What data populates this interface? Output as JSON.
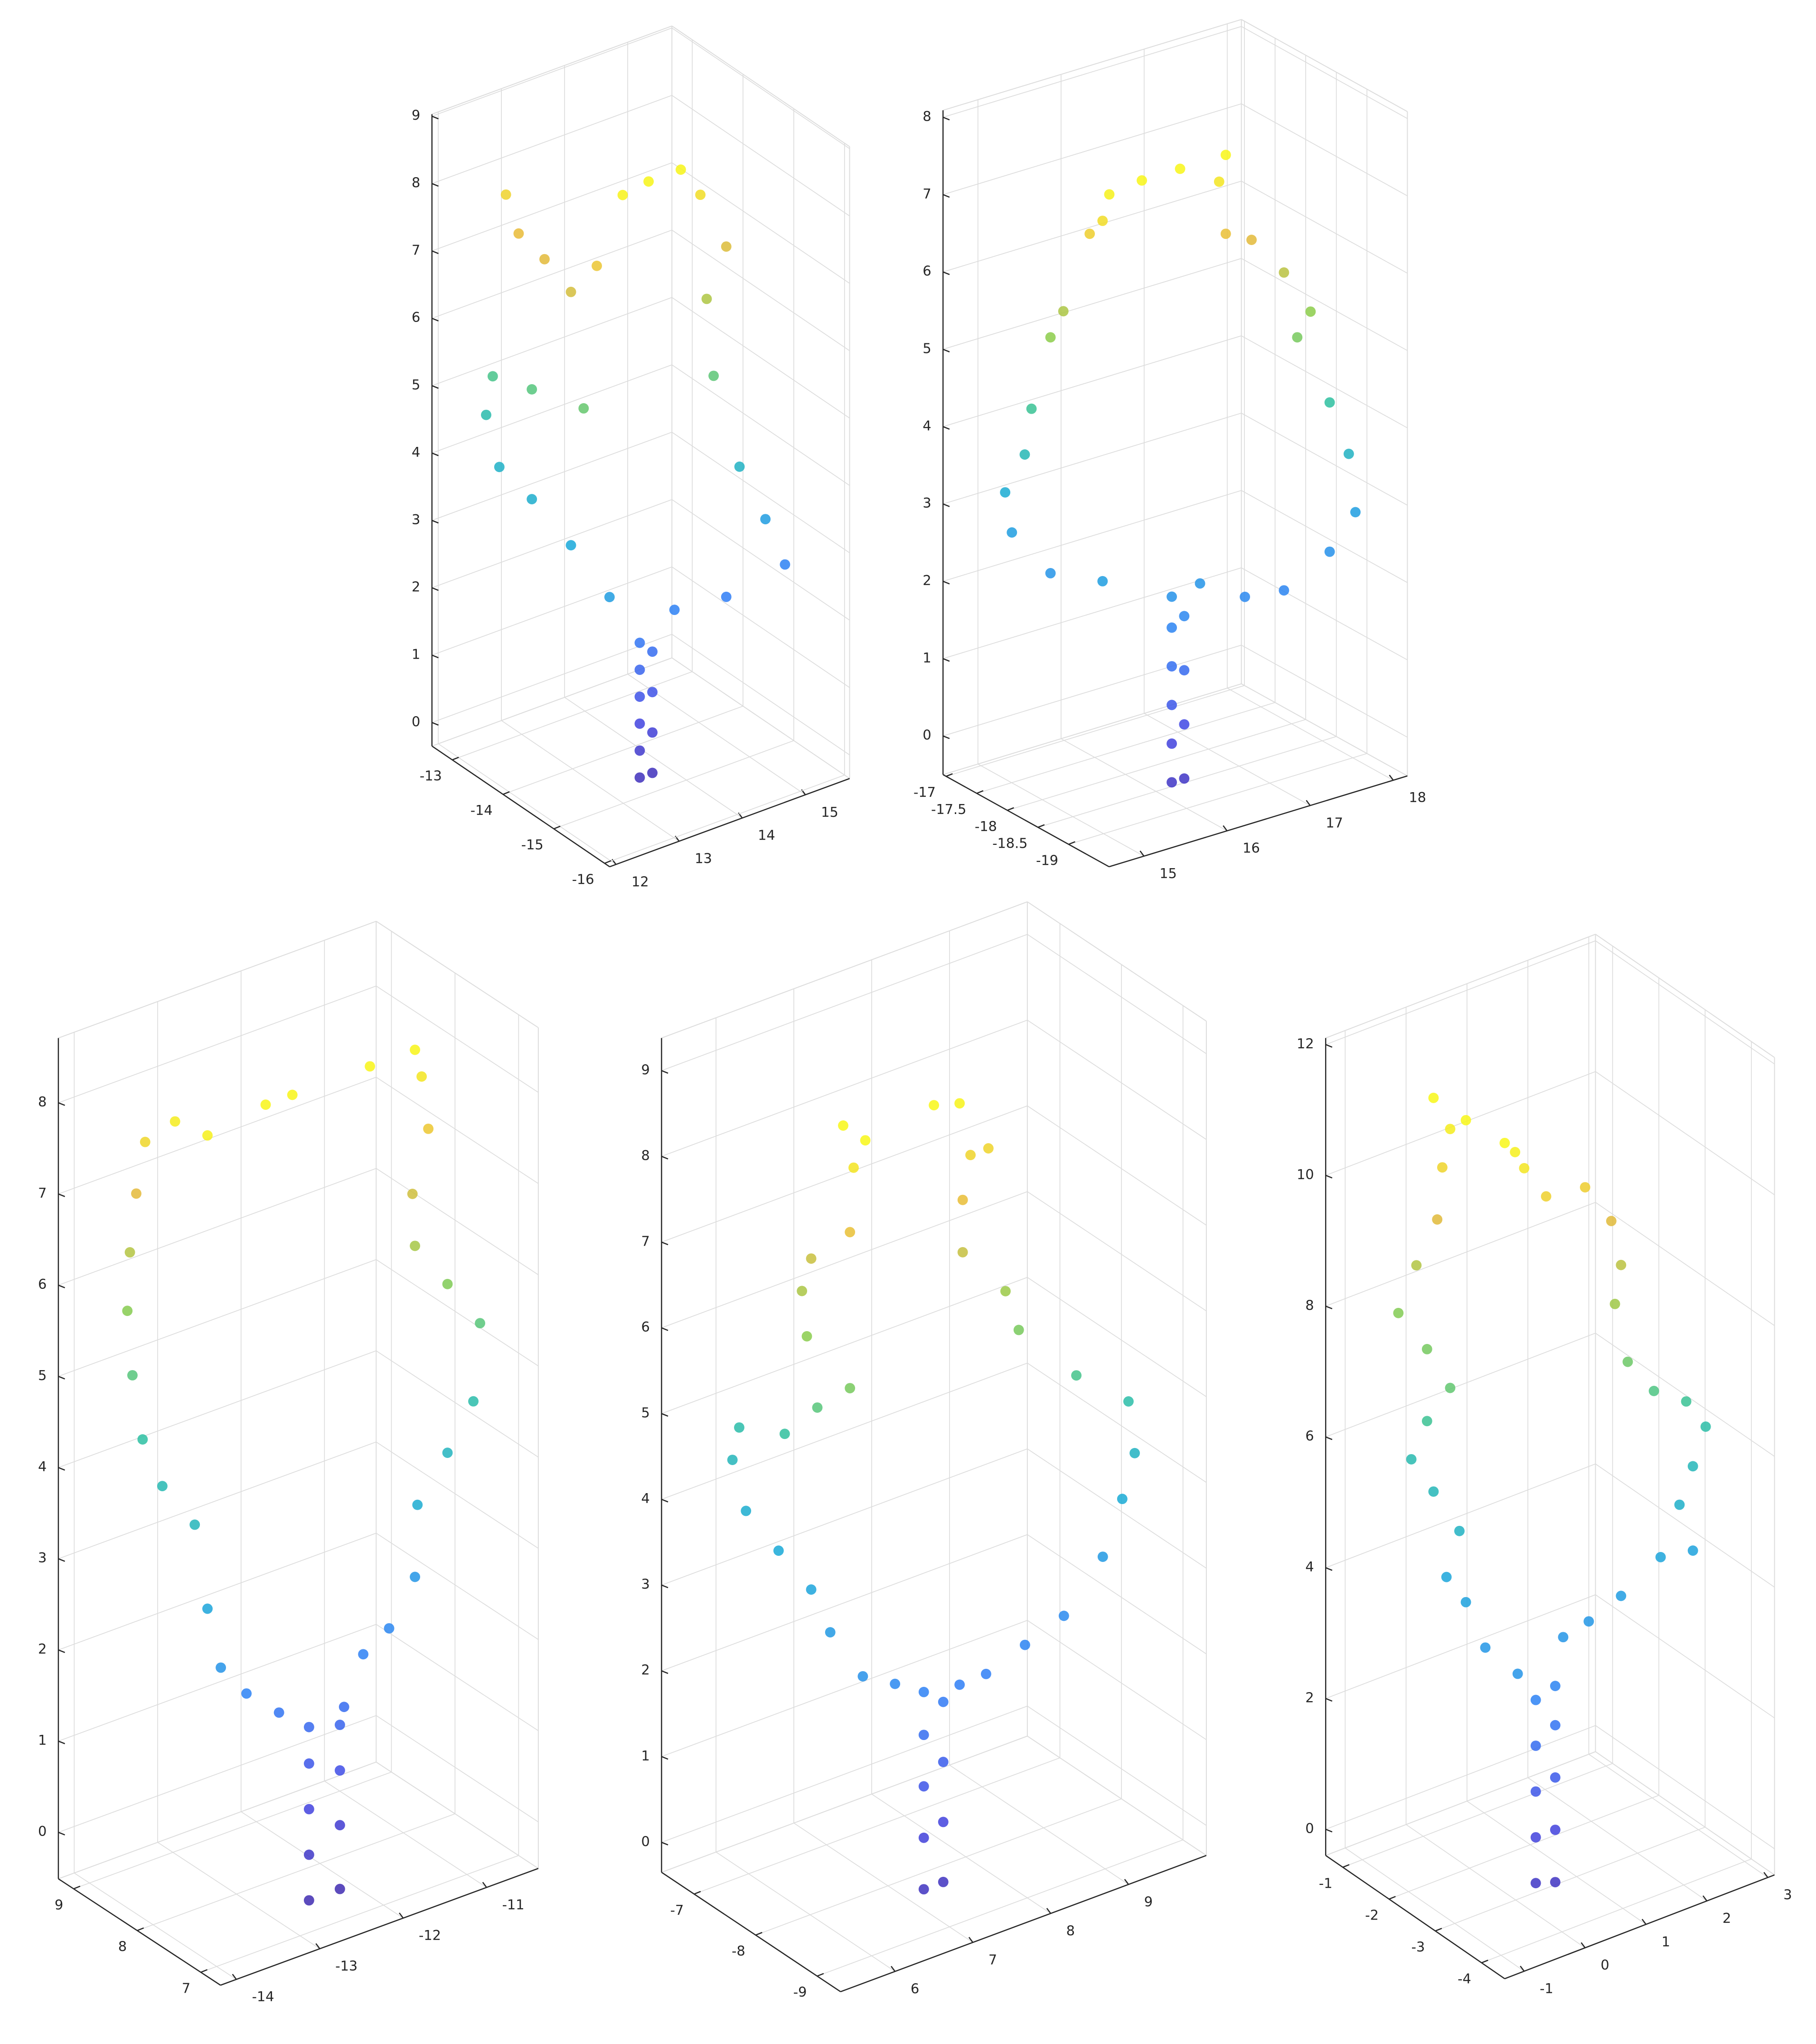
{
  "chart_data": [
    {
      "type": "scatter3d",
      "grid": true,
      "colormap": [
        "#3e26a8",
        "#4245e3",
        "#2f7ff6",
        "#19a9d8",
        "#2ec09f",
        "#8ccc4a",
        "#e8b938",
        "#f9fb15"
      ],
      "xlim": [
        11.9,
        15.7
      ],
      "ylim": [
        -16.1,
        -12.6
      ],
      "zlim": [
        -0.35,
        9.03
      ],
      "xticks": [
        12,
        13,
        14,
        15
      ],
      "yticks": [
        -16,
        -15,
        -14,
        -13
      ],
      "zticks": [
        0,
        1,
        2,
        3,
        4,
        5,
        6,
        7,
        8,
        9
      ],
      "x": [
        13.1,
        13.1,
        13.1,
        13.1,
        13.1,
        13.1,
        13.3,
        13.3,
        13.3,
        13.3,
        12.3,
        12.3,
        12.3,
        12.3,
        12.3,
        12.3,
        12.3,
        12.3,
        12.3,
        12.3,
        12.3,
        12.3,
        12.42,
        12.83,
        13.24,
        13.75,
        14.06,
        14.47,
        14.16,
        14.27,
        14.68,
        15.09,
        15.4,
        14.47,
        13.65
      ],
      "y": [
        -15.2,
        -15.2,
        -15.2,
        -15.2,
        -15.2,
        -15.2,
        -15.2,
        -15.2,
        -15.2,
        -15.2,
        -15.6,
        -14.84,
        -14.07,
        -13.43,
        -13.17,
        -13.3,
        -14.07,
        -15.09,
        -13.56,
        -13.81,
        -14.32,
        -14.84,
        -15.2,
        -15.2,
        -15.2,
        -15.2,
        -15.2,
        -15.2,
        -15.2,
        -15.2,
        -15.2,
        -15.2,
        -15.2,
        -15.2,
        -15.2
      ],
      "z": [
        0.1,
        0.5,
        0.9,
        1.3,
        1.7,
        2.1,
        0.1,
        0.7,
        1.3,
        1.9,
        3.26,
        3.64,
        3.93,
        4.08,
        4.72,
        5.36,
        5.56,
        5.8,
        8.19,
        7.74,
        7.62,
        7.4,
        7.93,
        8.84,
        8.9,
        8.9,
        8.42,
        7.51,
        6.84,
        5.66,
        4.17,
        3.25,
        2.47,
        2.31,
        2.4
      ]
    },
    {
      "type": "scatter3d",
      "grid": true,
      "colormap": [
        "#3e26a8",
        "#4245e3",
        "#2f7ff6",
        "#19a9d8",
        "#2ec09f",
        "#8ccc4a",
        "#e8b938",
        "#f9fb15"
      ],
      "xlim": [
        14.58,
        18.17
      ],
      "ylim": [
        -19.66,
        -16.95
      ],
      "zlim": [
        -0.5,
        8.09
      ],
      "xticks": [
        15,
        16,
        17,
        18
      ],
      "yticks": [
        -19,
        -18.5,
        -18,
        -17.5,
        -17
      ],
      "zticks": [
        0,
        1,
        2,
        3,
        4,
        5,
        6,
        7,
        8
      ],
      "x": [
        15.6,
        15.6,
        15.6,
        15.6,
        15.6,
        15.6,
        15.75,
        15.75,
        15.75,
        15.75,
        14.9,
        14.9,
        14.9,
        14.9,
        14.9,
        14.9,
        14.9,
        14.9,
        14.9,
        14.9,
        14.9,
        15.24,
        15.7,
        16.25,
        16.17,
        16.25,
        16.56,
        16.95,
        17.27,
        17.11,
        17.5,
        17.73,
        17.81,
        17.5,
        16.95,
        16.48,
        15.94
      ],
      "y": [
        -19.3,
        -19.3,
        -19.3,
        -19.3,
        -19.3,
        -19.3,
        -19.3,
        -19.3,
        -19.3,
        -19.3,
        -19.12,
        -18.27,
        -17.64,
        -17.53,
        -17.85,
        -17.96,
        -18.27,
        -18.48,
        -18.91,
        -19.23,
        -19.12,
        -19.3,
        -19.3,
        -19.3,
        -19.3,
        -19.3,
        -19.3,
        -19.3,
        -19.3,
        -19.3,
        -19.3,
        -19.3,
        -19.3,
        -19.3,
        -19.3,
        -19.3,
        -19.3
      ],
      "z": [
        0.1,
        0.6,
        1.1,
        1.6,
        2.1,
        2.5,
        0.1,
        0.8,
        1.5,
        2.2,
        2.85,
        2.58,
        2.83,
        3.3,
        3.93,
        4.57,
        5.63,
        6.06,
        7.25,
        7.9,
        7.51,
        8.0,
        8.0,
        8.0,
        7.68,
        6.98,
        6.8,
        6.25,
        5.64,
        5.36,
        4.39,
        3.65,
        2.87,
        2.46,
        2.14,
        2.21,
        2.56
      ]
    },
    {
      "type": "scatter3d",
      "grid": true,
      "colormap": [
        "#3e26a8",
        "#4245e3",
        "#2f7ff6",
        "#19a9d8",
        "#2ec09f",
        "#8ccc4a",
        "#e8b938",
        "#f9fb15"
      ],
      "xlim": [
        -14.19,
        -10.38
      ],
      "ylim": [
        6.69,
        9.24
      ],
      "zlim": [
        -0.51,
        8.71
      ],
      "xticks": [
        -14,
        -13,
        -12,
        -11
      ],
      "yticks": [
        7,
        8,
        9
      ],
      "zticks": [
        0,
        1,
        2,
        3,
        4,
        5,
        6,
        7,
        8
      ],
      "x": [
        -12.74,
        -12.74,
        -12.74,
        -12.74,
        -12.74,
        -12.37,
        -12.37,
        -12.37,
        -12.37,
        -13.1,
        -13.49,
        -13.95,
        -13.95,
        -13.95,
        -13.95,
        -13.95,
        -13.95,
        -13.95,
        -13.95,
        -13.95,
        -13.95,
        -13.95,
        -13.95,
        -13.26,
        -12.94,
        -12.01,
        -11.47,
        -11.39,
        -11.31,
        -11.5,
        -11.47,
        -11.08,
        -10.69,
        -10.77,
        -11.08,
        -11.44,
        -11.47,
        -11.78,
        -12.09,
        -12.32
      ],
      "y": [
        7.2,
        7.2,
        7.2,
        7.2,
        7.2,
        7.2,
        7.2,
        7.2,
        7.2,
        7.2,
        7.2,
        7.0,
        7.21,
        7.41,
        7.92,
        8.23,
        8.39,
        8.47,
        8.43,
        8.33,
        8.19,
        7.72,
        7.21,
        7.2,
        7.2,
        7.2,
        7.2,
        7.2,
        7.2,
        7.2,
        7.2,
        7.2,
        7.2,
        7.2,
        7.2,
        7.2,
        7.2,
        7.2,
        7.2,
        7.2
      ],
      "z": [
        -0.3,
        0.2,
        0.7,
        1.2,
        1.6,
        -0.3,
        0.4,
        1.0,
        1.5,
        1.88,
        2.22,
        2.75,
        3.3,
        4.13,
        4.32,
        4.69,
        5.32,
        5.99,
        6.65,
        7.34,
        7.97,
        8.41,
        8.49,
        8.6,
        8.6,
        8.6,
        8.6,
        8.28,
        7.68,
        7.03,
        6.45,
        5.9,
        5.34,
        4.51,
        4.05,
        3.6,
        2.82,
        2.36,
        2.18,
        1.68
      ]
    },
    {
      "type": "scatter3d",
      "grid": true,
      "colormap": [
        "#3e26a8",
        "#4245e3",
        "#2f7ff6",
        "#19a9d8",
        "#2ec09f",
        "#8ccc4a",
        "#e8b938",
        "#f9fb15"
      ],
      "xlim": [
        5.3,
        10.0
      ],
      "ylim": [
        -9.38,
        -6.47
      ],
      "zlim": [
        -0.35,
        9.38
      ],
      "xticks": [
        6,
        7,
        8,
        9
      ],
      "yticks": [
        -9,
        -8,
        -7
      ],
      "zticks": [
        0,
        1,
        2,
        3,
        4,
        5,
        6,
        7,
        8,
        9
      ],
      "x": [
        6.67,
        6.67,
        6.67,
        6.67,
        6.67,
        6.92,
        6.92,
        6.92,
        6.92,
        6.3,
        5.8,
        5.8,
        5.8,
        5.8,
        5.8,
        5.8,
        5.8,
        5.8,
        5.8,
        5.8,
        5.8,
        5.8,
        5.8,
        5.8,
        5.8,
        5.8,
        5.8,
        6.8,
        7.13,
        7.27,
        7.5,
        7.17,
        7.17,
        7.72,
        7.89,
        8.63,
        9.3,
        9.38,
        9.22,
        8.97,
        8.47,
        7.97,
        7.47,
        7.13
      ],
      "y": [
        -9.0,
        -9.0,
        -9.0,
        -9.0,
        -9.0,
        -9.0,
        -9.0,
        -9.0,
        -9.0,
        -9.0,
        -9.11,
        -8.58,
        -8.27,
        -7.74,
        -7.21,
        -6.99,
        -7.1,
        -7.84,
        -8.37,
        -8.9,
        -8.2,
        -8.12,
        -8.27,
        -8.9,
        -8.96,
        -8.79,
        -9.15,
        -9.0,
        -9.0,
        -9.0,
        -9.0,
        -9.0,
        -9.0,
        -9.0,
        -9.0,
        -9.0,
        -9.0,
        -9.0,
        -9.0,
        -9.0,
        -9.0,
        -9.0,
        -9.0,
        -9.0
      ],
      "z": [
        0.2,
        0.8,
        1.4,
        2.0,
        2.5,
        0.2,
        0.9,
        1.6,
        2.3,
        2.72,
        3.03,
        3.29,
        3.64,
        3.84,
        4.05,
        4.54,
        4.97,
        5.25,
        5.81,
        6.29,
        6.56,
        7.05,
        7.5,
        8.11,
        8.89,
        9.3,
        9.3,
        9.3,
        9.21,
        8.56,
        8.56,
        8.07,
        7.46,
        6.82,
        6.31,
        5.53,
        5.0,
        4.37,
        3.89,
        3.3,
        2.78,
        2.61,
        2.44,
        2.43
      ]
    },
    {
      "type": "scatter3d",
      "grid": true,
      "colormap": [
        "#3e26a8",
        "#4245e3",
        "#2f7ff6",
        "#19a9d8",
        "#2ec09f",
        "#8ccc4a",
        "#e8b938",
        "#f9fb15"
      ],
      "xlim": [
        -1.32,
        3.11
      ],
      "ylim": [
        -4.5,
        -0.63
      ],
      "zlim": [
        -0.4,
        12.1
      ],
      "xticks": [
        -1,
        0,
        1,
        2,
        3
      ],
      "yticks": [
        -4,
        -3,
        -2,
        -1
      ],
      "zticks": [
        0,
        2,
        4,
        6,
        8,
        10,
        12
      ],
      "x": [
        -0.43,
        -0.43,
        -0.43,
        -0.43,
        -0.43,
        -0.11,
        -0.11,
        -0.11,
        -0.11,
        -0.11,
        -1.0,
        -1.0,
        -1.0,
        -1.0,
        -1.0,
        -1.0,
        -1.0,
        -1.0,
        -1.0,
        -1.0,
        -1.0,
        -1.0,
        -1.0,
        -1.0,
        -1.0,
        -1.0,
        -1.0,
        -0.94,
        -0.77,
        -0.62,
        -0.26,
        0.38,
        0.81,
        0.97,
        0.87,
        1.08,
        1.51,
        2.04,
        2.36,
        2.15,
        1.93,
        2.15,
        1.62,
        0.97,
        0.44,
        0.02
      ],
      "y": [
        -4.0,
        -4.0,
        -4.0,
        -4.0,
        -4.0,
        -4.0,
        -4.0,
        -4.0,
        -4.0,
        -4.0,
        -4.36,
        -3.66,
        -3.24,
        -2.82,
        -3.1,
        -2.54,
        -2.06,
        -2.4,
        -2.9,
        -2.4,
        -1.78,
        -2.17,
        -2.62,
        -2.73,
        -2.9,
        -2.54,
        -3.24,
        -4.0,
        -4.0,
        -4.0,
        -4.0,
        -4.0,
        -4.0,
        -4.0,
        -4.0,
        -4.0,
        -4.0,
        -4.0,
        -4.0,
        -4.0,
        -4.0,
        -4.0,
        -4.0,
        -4.0,
        -4.0,
        -4.0
      ],
      "z": [
        0.5,
        1.2,
        1.9,
        2.6,
        3.3,
        0.4,
        1.2,
        2.0,
        2.8,
        3.4,
        4.08,
        4.14,
        4.63,
        4.81,
        5.65,
        5.98,
        6.24,
        6.99,
        7.74,
        8.09,
        8.34,
        9.26,
        10.18,
        11.03,
        11.7,
        12.0,
        12.0,
        12.0,
        11.8,
        11.5,
        10.94,
        10.85,
        10.18,
        9.45,
        8.89,
        7.93,
        7.33,
        6.98,
        6.48,
        5.95,
        5.44,
        4.66,
        4.75,
        4.39,
        4.19,
        4.1
      ]
    }
  ]
}
